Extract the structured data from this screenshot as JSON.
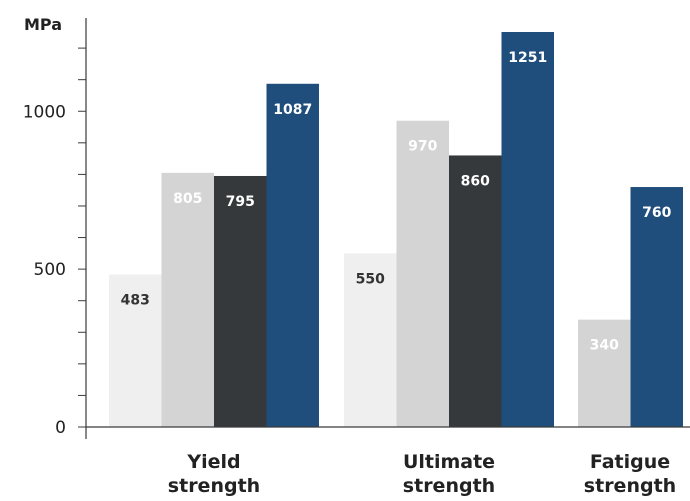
{
  "chart_data": {
    "type": "bar",
    "ylabel": "MPa",
    "ylim": [
      0,
      1251
    ],
    "yticks": [
      0,
      500,
      1000
    ],
    "grid": false,
    "categories": [
      {
        "lines": [
          "Yield",
          "strength"
        ]
      },
      {
        "lines": [
          "Ultimate",
          "strength"
        ]
      },
      {
        "lines": [
          "Fatigue",
          "strength"
        ]
      }
    ],
    "series": [
      {
        "color": "#efefef",
        "label_color": "#333333",
        "values": [
          483,
          550,
          null
        ]
      },
      {
        "color": "#d4d4d4",
        "label_color": "#ffffff",
        "values": [
          805,
          970,
          340
        ]
      },
      {
        "color": "#35393b",
        "label_color": "#ffffff",
        "values": [
          795,
          860,
          null
        ]
      },
      {
        "color": "#1f4e7d",
        "label_color": "#ffffff",
        "values": [
          1087,
          1251,
          760
        ]
      }
    ]
  }
}
